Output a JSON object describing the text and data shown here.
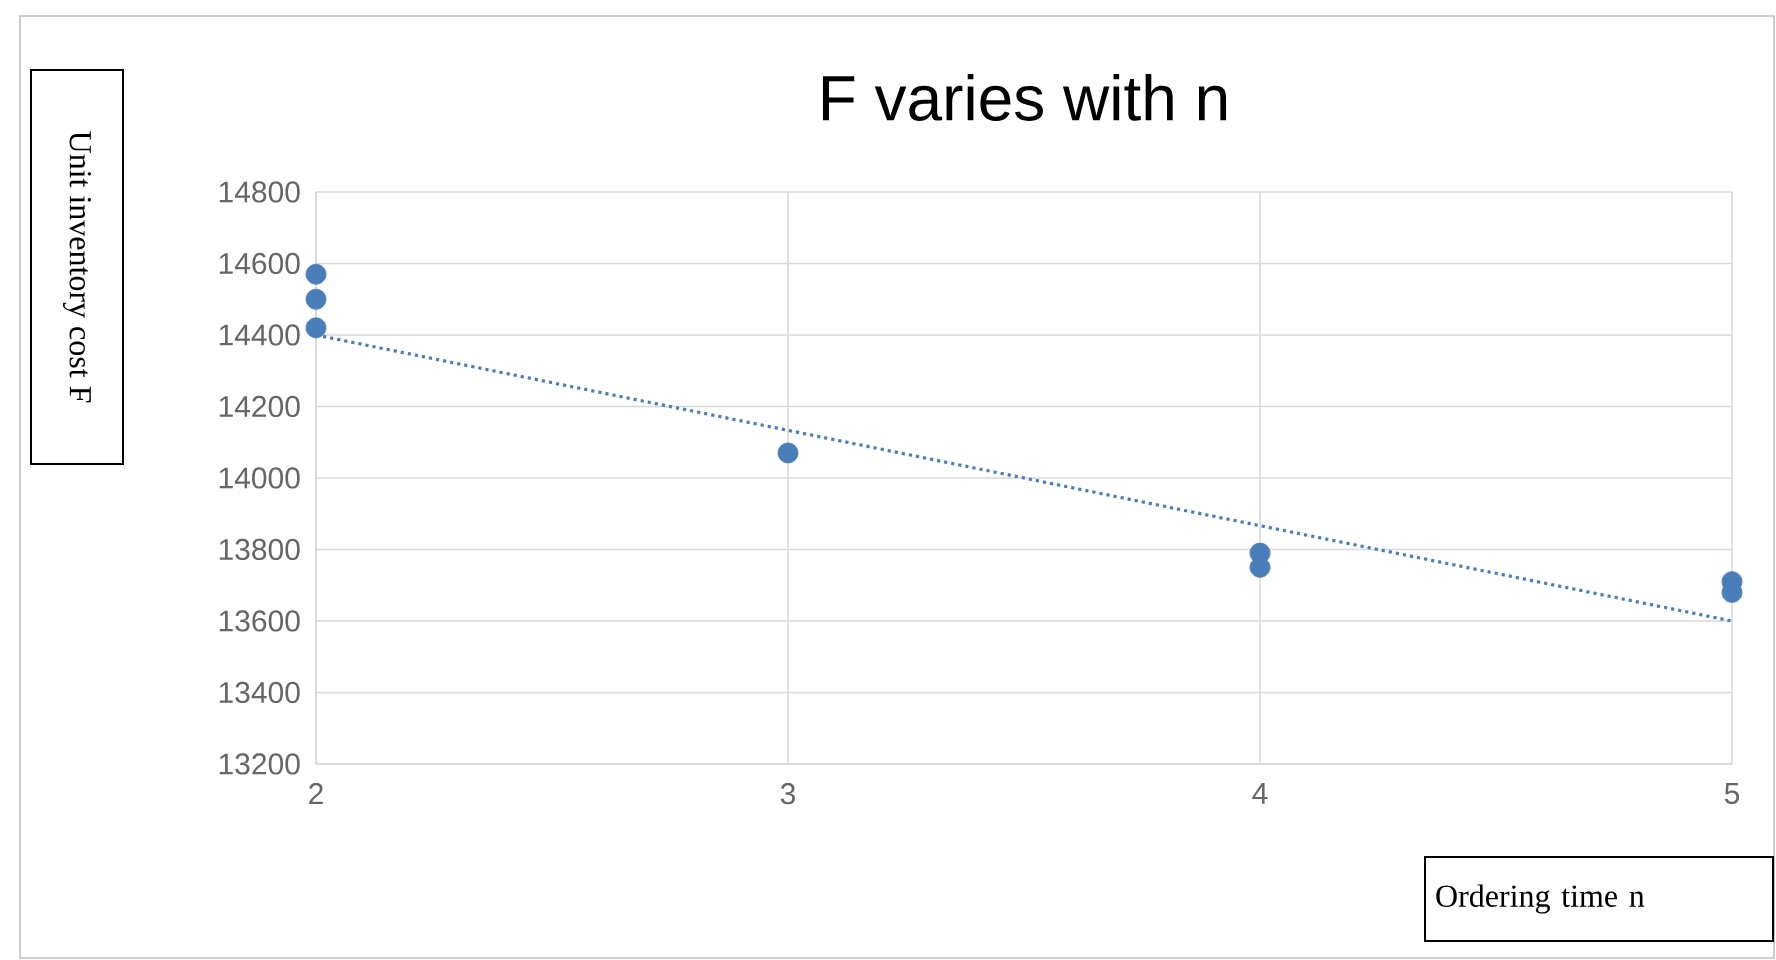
{
  "chart_data": {
    "type": "scatter",
    "title": "F varies with n",
    "xlabel": "Ordering time n",
    "ylabel": "Unit inventory cost F",
    "xlim": [
      2,
      5
    ],
    "xticks": [
      2,
      3,
      4,
      5
    ],
    "ylim": [
      13200,
      14800
    ],
    "yticks": [
      13200,
      13400,
      13600,
      13800,
      14000,
      14200,
      14400,
      14600,
      14800
    ],
    "grid": true,
    "marker": "circle",
    "series": [
      {
        "color": "#4a7ebb",
        "x": [
          2,
          2,
          2,
          3,
          4,
          4,
          5,
          5
        ],
        "values": [
          14570,
          14500,
          14420,
          14070,
          13790,
          13750,
          13710,
          13680
        ]
      },
      {
        "type": "line",
        "color": "#4a7ebb",
        "x": [
          2,
          5
        ],
        "values": [
          14400,
          13600
        ],
        "marker": "none",
        "line_style": "dotted"
      }
    ]
  }
}
